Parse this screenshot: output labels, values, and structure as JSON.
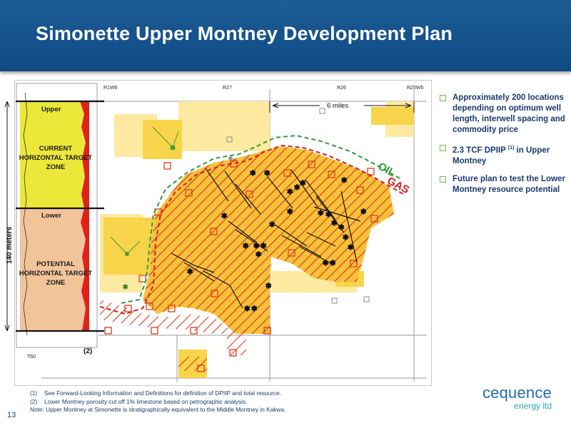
{
  "header": {
    "title": "Simonette Upper Montney Development Plan"
  },
  "map": {
    "range_labels": [
      "R1W6",
      "R27",
      "R26",
      "R25W5"
    ],
    "scale_label": "6 miles",
    "log": {
      "upper": "Upper",
      "current_zone": "CURRENT HORIZONTAL TARGET ZONE",
      "lower": "Lower",
      "potential_zone": "POTENTIAL HORIZONTAL TARGET ZONE",
      "thickness": "140 meters",
      "bottom_marker": "T60",
      "footnote_ref": "(2)"
    },
    "oil_label": "OIL",
    "gas_label": "GAS",
    "colors": {
      "oil_line": "#2e9a3a",
      "gas_line": "#d42020",
      "land": "#f7d44a",
      "land_light": "#fdeaa0"
    }
  },
  "bullets": [
    {
      "text": "Approximately 200 locations depending on optimum well length, interwell spacing and commodity price"
    },
    {
      "pre": "2.3 TCF DPIIP ",
      "sup": "(1)",
      "post": " in Upper Montney"
    },
    {
      "text": "Future plan to test the Lower Montney resource potential"
    }
  ],
  "notes": [
    {
      "num": "(1)",
      "text": "See Forward-Looking Information and Definitions for definition of DPIIP and total resource."
    },
    {
      "num": "(2)",
      "text": "Lower Montney porosity cut off 1% limestone based on petrographic analysis."
    },
    {
      "num": "",
      "text": "Note: Upper Montney at Simonette is stratigraphically equivalent to the Middle Montney  in Kakwa."
    }
  ],
  "page_number": "13",
  "logo": {
    "name": "cequence",
    "subtitle": "energy ltd"
  }
}
